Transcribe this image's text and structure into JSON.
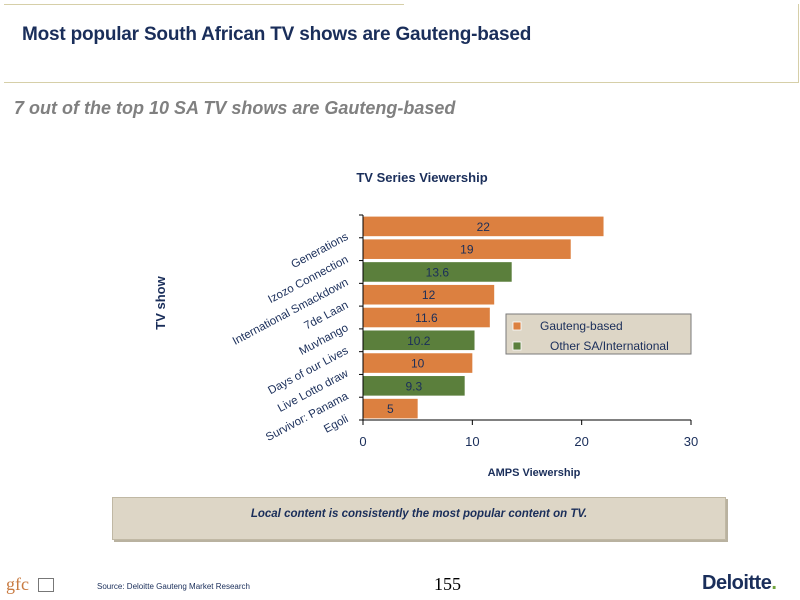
{
  "header": {
    "title": "Most popular South African TV shows are Gauteng-based",
    "subtitle": "7 out of the top 10 SA TV shows are Gauteng-based"
  },
  "chart_data": {
    "type": "bar",
    "orientation": "horizontal",
    "title": "TV Series Viewership",
    "xlabel": "AMPS Viewership",
    "ylabel": "TV show",
    "xlim": [
      0,
      30
    ],
    "xticks": [
      "0",
      "10",
      "20",
      "30"
    ],
    "categories": [
      "Generations",
      "Izozo Connection",
      "International Smackdown",
      "7de Laan",
      "Muvhango",
      "Days of our Lives",
      "Live Lotto draw",
      "Survivor: Panama",
      "Egoli"
    ],
    "values": [
      22,
      19,
      13.6,
      12,
      11.6,
      10.2,
      10,
      9.3,
      5
    ],
    "value_labels": [
      "22",
      "19",
      "13.6",
      "12",
      "11.6",
      "10.2",
      "10",
      "9.3",
      "5"
    ],
    "groups": [
      "Gauteng-based",
      "Gauteng-based",
      "Other SA/International",
      "Gauteng-based",
      "Gauteng-based",
      "Other SA/International",
      "Gauteng-based",
      "Other SA/International",
      "Gauteng-based"
    ],
    "series": [
      {
        "name": "Gauteng-based",
        "color": "#dc8040"
      },
      {
        "name": "Other SA/International",
        "color": "#5b7f3c"
      }
    ],
    "legend_position": "right",
    "grid": false
  },
  "callout": {
    "text": "Local content is consistently the most popular content on TV."
  },
  "footer": {
    "source": "Source: Deloitte Gauteng Market Research",
    "page_number": "155",
    "left_logo_text": "gfc",
    "brand": "Deloitte",
    "brand_dot": "."
  }
}
